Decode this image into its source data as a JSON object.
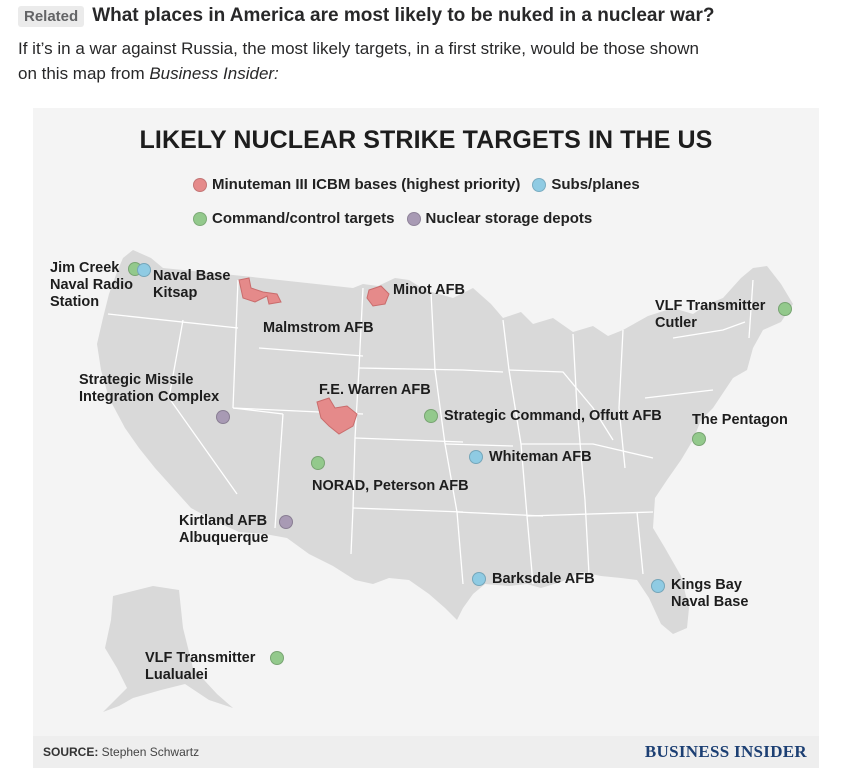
{
  "question": {
    "badge": "Related",
    "title": "What places in America are most likely to be nuked in a nuclear war?"
  },
  "answer": {
    "line1": "If it’s in a war against Russia, the most likely targets, in a first strike, would be those shown",
    "line2_prefix": "on this map from ",
    "line2_source": "Business Insider:"
  },
  "map": {
    "title": "LIKELY NUCLEAR STRIKE TARGETS IN THE US",
    "legend": [
      {
        "label": "Minuteman III ICBM bases (highest priority)",
        "color": "#e58a8a"
      },
      {
        "label": "Subs/planes",
        "color": "#8fcbe3"
      },
      {
        "label": "Command/control targets",
        "color": "#93c98c"
      },
      {
        "label": "Nuclear storage depots",
        "color": "#a89ab4"
      }
    ],
    "colors": {
      "land": "#d9d9d9",
      "borders": "#ffffff",
      "icbm": "#e58a8a"
    },
    "icbm_labels": {
      "malmstrom": "Malmstrom AFB",
      "minot": "Minot AFB",
      "warren": "F.E. Warren AFB"
    },
    "sites": {
      "jim_creek": [
        "Jim Creek",
        "Naval Radio",
        "Station"
      ],
      "kitsap": [
        "Naval Base",
        "Kitsap"
      ],
      "vlf_cutler": [
        "VLF Transmitter",
        "Cutler"
      ],
      "strategic_missile": [
        "Strategic Missile",
        "Integration Complex"
      ],
      "offutt": "Strategic Command, Offutt AFB",
      "pentagon": "The Pentagon",
      "whiteman": "Whiteman AFB",
      "norad": "NORAD, Peterson AFB",
      "kirtland": [
        "Kirtland AFB",
        "Albuquerque"
      ],
      "barksdale": "Barksdale AFB",
      "kings_bay": [
        "Kings Bay",
        "Naval Base"
      ],
      "vlf_lualualei": [
        "VLF Transmitter",
        "Lualualei"
      ]
    },
    "footer": {
      "source_label": "SOURCE:",
      "source_name": " Stephen Schwartz",
      "brand": "BUSINESS INSIDER"
    }
  }
}
